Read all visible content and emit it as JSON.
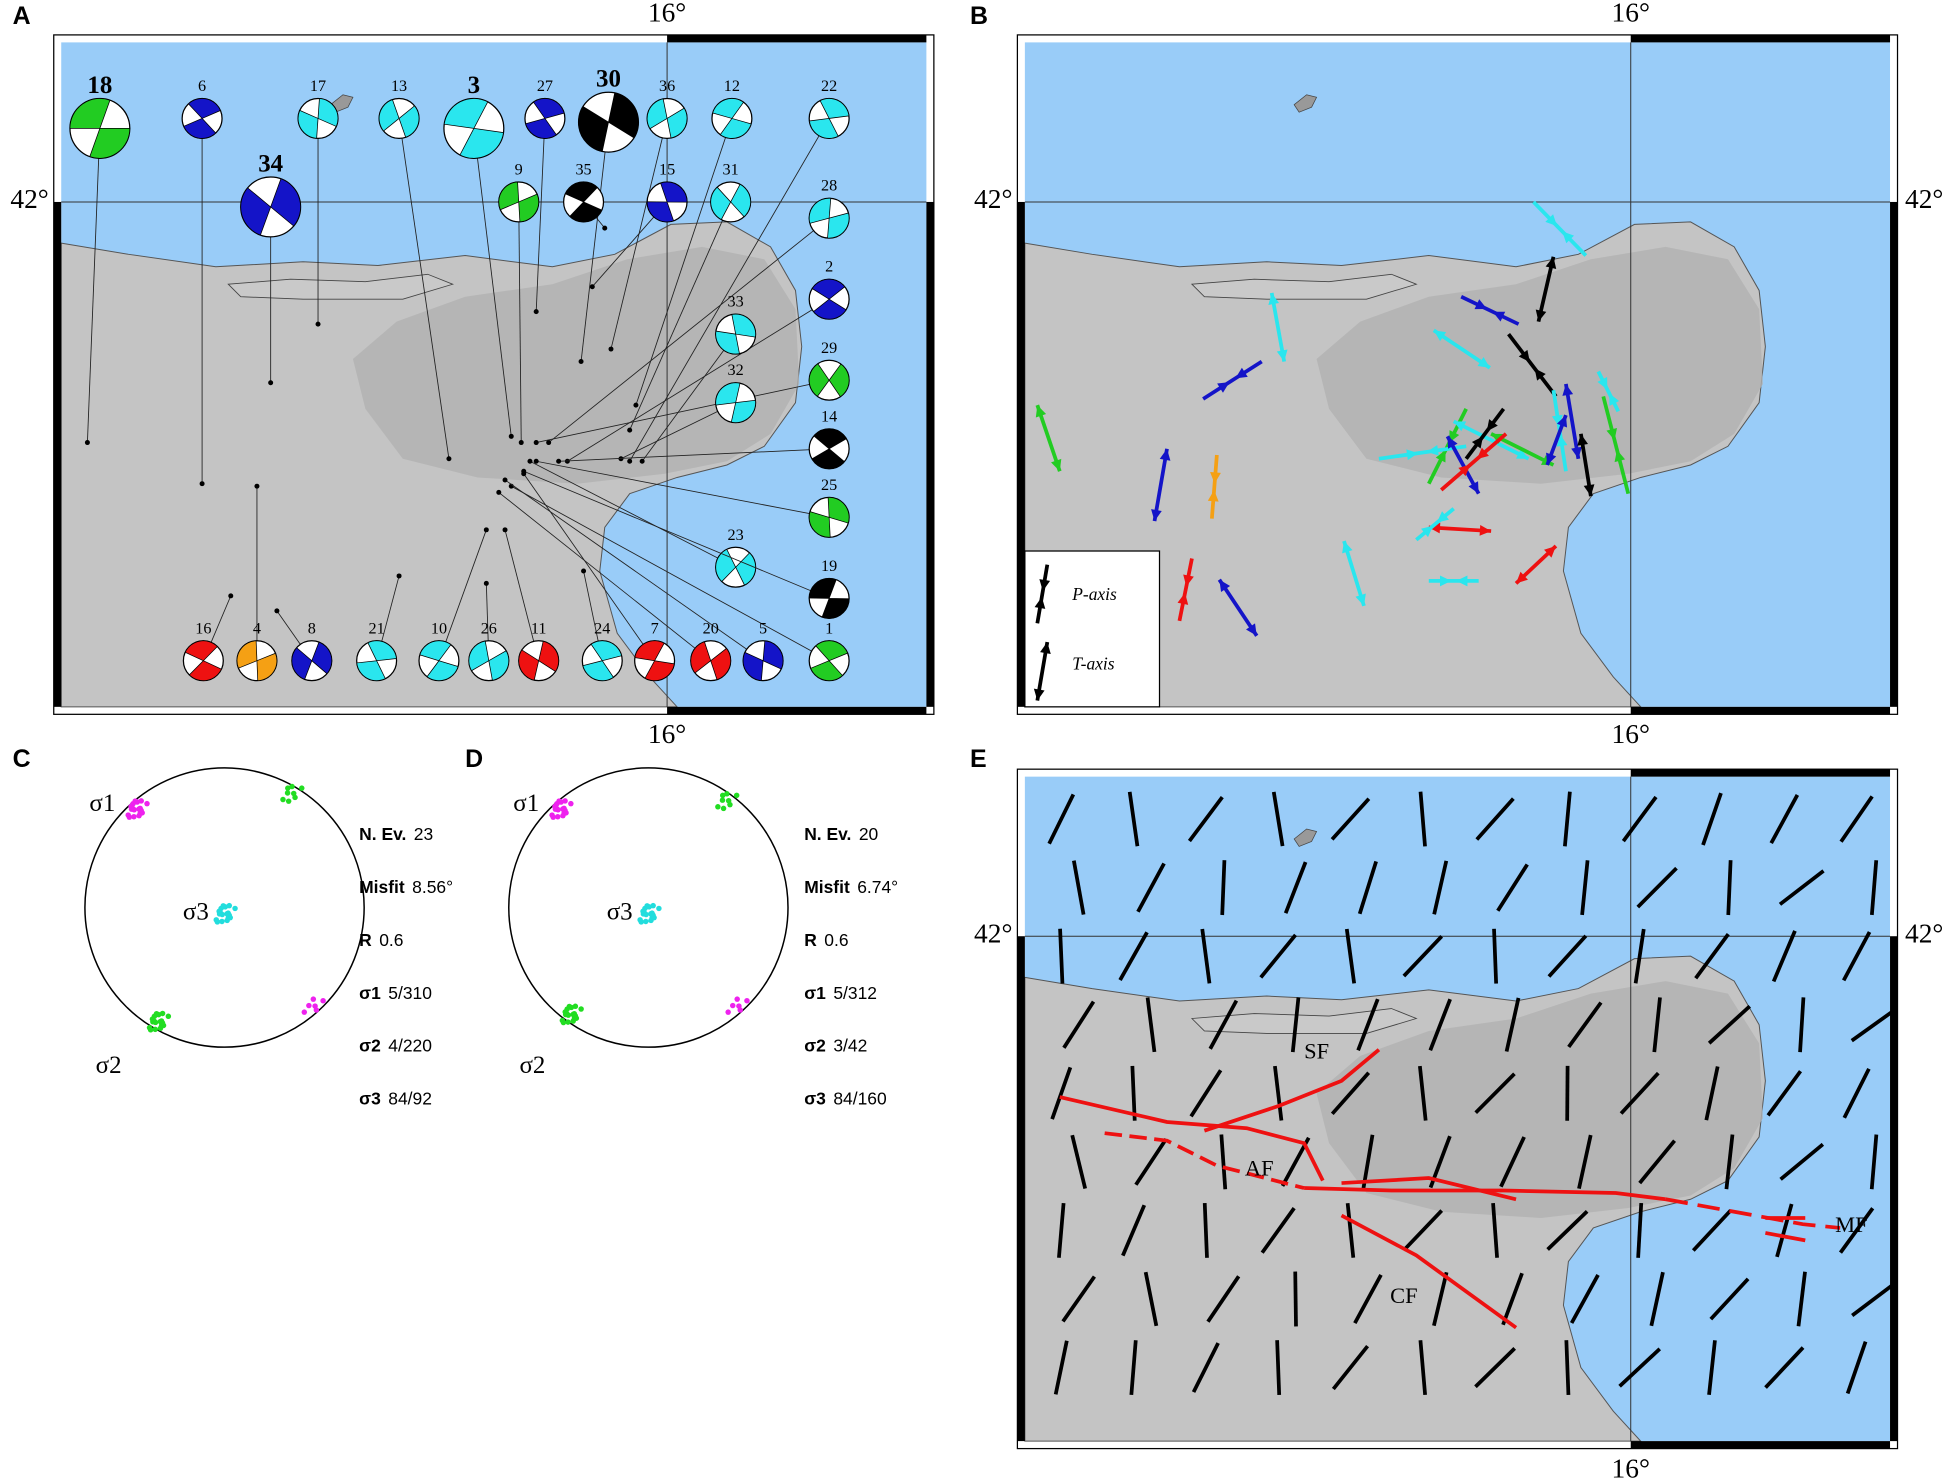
{
  "panel_labels": [
    "A",
    "B",
    "C",
    "D",
    "E"
  ],
  "axis_labels": {
    "lon": "16°",
    "lat": "42°"
  },
  "panel_a": {
    "events": [
      {
        "id": "18",
        "color": "#22cc22"
      },
      {
        "id": "6",
        "color": "#1414c8"
      },
      {
        "id": "17",
        "color": "#2ae6ee"
      },
      {
        "id": "13",
        "color": "#2ae6ee"
      },
      {
        "id": "3",
        "color": "#2ae6ee"
      },
      {
        "id": "27",
        "color": "#1414c8"
      },
      {
        "id": "30",
        "color": "#000000"
      },
      {
        "id": "36",
        "color": "#2ae6ee"
      },
      {
        "id": "12",
        "color": "#2ae6ee"
      },
      {
        "id": "22",
        "color": "#2ae6ee"
      },
      {
        "id": "34",
        "color": "#1414c8"
      },
      {
        "id": "9",
        "color": "#22cc22"
      },
      {
        "id": "35",
        "color": "#000000"
      },
      {
        "id": "15",
        "color": "#1414c8"
      },
      {
        "id": "31",
        "color": "#2ae6ee"
      },
      {
        "id": "28",
        "color": "#2ae6ee"
      },
      {
        "id": "2",
        "color": "#1414c8"
      },
      {
        "id": "33",
        "color": "#2ae6ee"
      },
      {
        "id": "29",
        "color": "#22cc22"
      },
      {
        "id": "32",
        "color": "#2ae6ee"
      },
      {
        "id": "14",
        "color": "#000000"
      },
      {
        "id": "25",
        "color": "#22cc22"
      },
      {
        "id": "23",
        "color": "#2ae6ee"
      },
      {
        "id": "19",
        "color": "#000000"
      },
      {
        "id": "1",
        "color": "#22cc22"
      },
      {
        "id": "5",
        "color": "#1414c8"
      },
      {
        "id": "20",
        "color": "#ee1111"
      },
      {
        "id": "7",
        "color": "#ee1111"
      },
      {
        "id": "24",
        "color": "#2ae6ee"
      },
      {
        "id": "11",
        "color": "#ee1111"
      },
      {
        "id": "26",
        "color": "#2ae6ee"
      },
      {
        "id": "10",
        "color": "#2ae6ee"
      },
      {
        "id": "21",
        "color": "#2ae6ee"
      },
      {
        "id": "8",
        "color": "#1414c8"
      },
      {
        "id": "4",
        "color": "#f5a014"
      },
      {
        "id": "16",
        "color": "#ee1111"
      }
    ]
  },
  "panel_b": {
    "legend": [
      "P-axis",
      "T-axis"
    ]
  },
  "panel_c": {
    "sigma": [
      "σ1",
      "σ2",
      "σ3"
    ],
    "stats": [
      {
        "key": "N. Ev.",
        "value": "23"
      },
      {
        "key": "Misfit",
        "value": "8.56°"
      },
      {
        "key": "R",
        "value": "0.6"
      },
      {
        "key": "σ1",
        "value": "5/310"
      },
      {
        "key": "σ2",
        "value": "4/220"
      },
      {
        "key": "σ3",
        "value": "84/92"
      }
    ]
  },
  "panel_d": {
    "sigma": [
      "σ1",
      "σ2",
      "σ3"
    ],
    "stats": [
      {
        "key": "N. Ev.",
        "value": "20"
      },
      {
        "key": "Misfit",
        "value": "6.74°"
      },
      {
        "key": "R",
        "value": "0.6"
      },
      {
        "key": "σ1",
        "value": "5/312"
      },
      {
        "key": "σ2",
        "value": "3/42"
      },
      {
        "key": "σ3",
        "value": "84/160"
      }
    ]
  },
  "panel_e": {
    "faults": [
      "SF",
      "AF",
      "CF",
      "MF"
    ]
  }
}
